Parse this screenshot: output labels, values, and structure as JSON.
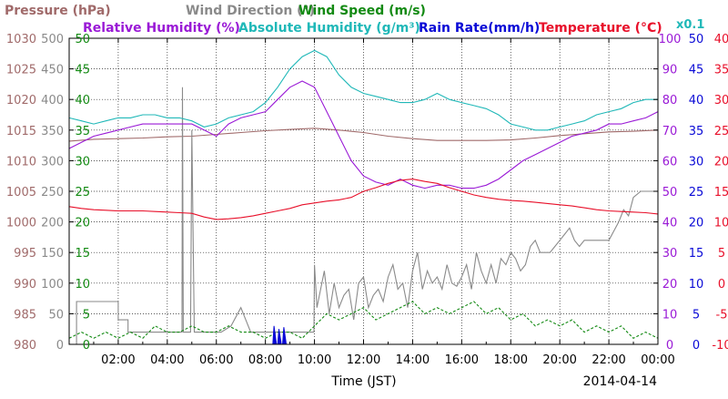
{
  "chart_data": {
    "type": "line",
    "date_label": "2014-04-14",
    "x_axis": {
      "label": "Time (JST)",
      "range_hours": [
        0,
        24
      ],
      "ticks": [
        "02:00",
        "04:00",
        "06:00",
        "08:00",
        "10:00",
        "12:00",
        "14:00",
        "16:00",
        "18:00",
        "20:00",
        "22:00",
        "00:00"
      ],
      "grid": true
    },
    "legend": {
      "row1": [
        {
          "text": "Pressure (hPa)",
          "color": "#a06a6a"
        },
        {
          "text": "Wind Direction (°)",
          "color": "#8a8a8a"
        },
        {
          "text": "Wind Speed (m/s)",
          "color": "#138a13"
        }
      ],
      "row2": [
        {
          "text": "Relative Humidity (%)",
          "color": "#9a1ad6"
        },
        {
          "text": "Absolute Humidity (g/m³)",
          "color": "#20b8b8"
        },
        {
          "text": "Rain Rate(mm/h)",
          "color": "#0a0ad6"
        },
        {
          "text": "Temperature (°C)",
          "color": "#e8102a"
        }
      ],
      "scale_note": {
        "text": "x0.1",
        "color": "#20b8b8"
      }
    },
    "y_axes": [
      {
        "name": "Pressure (hPa)",
        "side": "left",
        "color": "#a06a6a",
        "range": [
          980,
          1030
        ],
        "ticks": [
          "980",
          "985",
          "990",
          "995",
          "1000",
          "1005",
          "1010",
          "1015",
          "1020",
          "1025",
          "1030"
        ]
      },
      {
        "name": "Wind Direction (°)",
        "side": "left",
        "color": "#8a8a8a",
        "range": [
          0,
          500
        ],
        "ticks": [
          "0",
          "50",
          "100",
          "150",
          "200",
          "250",
          "300",
          "350",
          "400",
          "450",
          "500"
        ]
      },
      {
        "name": "Wind Speed (m/s)",
        "side": "left",
        "color": "#138a13",
        "range": [
          0,
          50
        ],
        "ticks": [
          "0",
          "5",
          "10",
          "15",
          "20",
          "25",
          "30",
          "35",
          "40",
          "45",
          "50"
        ]
      },
      {
        "name": "Relative Humidity (%)",
        "side": "right",
        "color": "#9a1ad6",
        "range": [
          0,
          100
        ],
        "ticks": [
          "0",
          "10",
          "20",
          "30",
          "40",
          "50",
          "60",
          "70",
          "80",
          "90",
          "100"
        ]
      },
      {
        "name": "Rain Rate(mm/h)",
        "side": "right",
        "color": "#0a0ad6",
        "range": [
          0,
          50
        ],
        "ticks": [
          "0",
          "5",
          "10",
          "15",
          "20",
          "25",
          "30",
          "35",
          "40",
          "45",
          "50"
        ]
      },
      {
        "name": "Temperature (°C)",
        "side": "right",
        "color": "#e8102a",
        "range": [
          -10,
          40
        ],
        "ticks": [
          "-10",
          "-5",
          "0",
          "5",
          "10",
          "15",
          "20",
          "25",
          "30",
          "35",
          "40"
        ]
      }
    ],
    "series": [
      {
        "name": "Pressure (hPa)",
        "color": "#a06a6a",
        "axis": 0,
        "style": "solid",
        "x": [
          0,
          1,
          2,
          3,
          4,
          5,
          6,
          7,
          8,
          9,
          10,
          11,
          12,
          13,
          14,
          15,
          16,
          17,
          18,
          19,
          20,
          21,
          22,
          23,
          24
        ],
        "y": [
          1013.2,
          1013.5,
          1013.6,
          1013.7,
          1013.9,
          1014.0,
          1014.3,
          1014.6,
          1014.9,
          1015.1,
          1015.3,
          1015.0,
          1014.6,
          1014.0,
          1013.6,
          1013.3,
          1013.3,
          1013.3,
          1013.4,
          1013.7,
          1014.1,
          1014.4,
          1014.7,
          1014.8,
          1015.0
        ]
      },
      {
        "name": "Wind Direction (°)",
        "color": "#8a8a8a",
        "axis": 1,
        "style": "solid",
        "x": [
          0,
          0.3,
          0.3,
          2,
          2,
          2.4,
          2.4,
          3.8,
          3.8,
          4.5,
          4.6,
          4.62,
          4.65,
          4.8,
          4.9,
          4.95,
          5.0,
          5.1,
          5.2,
          5.6,
          5.8,
          6.0,
          6.2,
          6.6,
          7.0,
          7.4,
          8.0,
          8.5,
          9.0,
          9.5,
          9.98,
          10.0,
          10.1,
          10.2,
          10.4,
          10.6,
          10.8,
          11.0,
          11.2,
          11.4,
          11.6,
          11.8,
          12.0,
          12.2,
          12.4,
          12.6,
          12.8,
          13.0,
          13.2,
          13.4,
          13.6,
          13.8,
          14.0,
          14.2,
          14.4,
          14.6,
          14.8,
          15.0,
          15.2,
          15.4,
          15.6,
          15.8,
          16.0,
          16.2,
          16.4,
          16.6,
          16.8,
          17.0,
          17.2,
          17.4,
          17.6,
          17.8,
          18.0,
          18.2,
          18.4,
          18.6,
          18.8,
          19.0,
          19.2,
          19.4,
          19.6,
          19.8,
          20.0,
          20.2,
          20.4,
          20.6,
          20.8,
          21.0,
          21.5,
          22.0,
          22.4,
          22.6,
          22.8,
          23.0,
          23.3,
          23.6,
          24.0
        ],
        "y": [
          0,
          0,
          70,
          70,
          40,
          40,
          20,
          20,
          20,
          20,
          20,
          420,
          20,
          20,
          20,
          20,
          350,
          20,
          20,
          20,
          20,
          20,
          20,
          30,
          60,
          20,
          20,
          20,
          20,
          20,
          20,
          130,
          60,
          80,
          120,
          50,
          100,
          60,
          80,
          90,
          40,
          100,
          110,
          60,
          80,
          90,
          70,
          110,
          130,
          90,
          100,
          60,
          120,
          150,
          90,
          120,
          100,
          110,
          90,
          130,
          100,
          95,
          110,
          130,
          90,
          150,
          120,
          100,
          130,
          100,
          140,
          130,
          150,
          140,
          120,
          130,
          160,
          170,
          150,
          150,
          150,
          160,
          170,
          180,
          190,
          170,
          160,
          170,
          170,
          170,
          200,
          220,
          210,
          240,
          250,
          250,
          250
        ]
      },
      {
        "name": "Wind Speed (m/s)",
        "color": "#138a13",
        "axis": 2,
        "style": "dashed",
        "x": [
          0,
          0.5,
          1,
          1.5,
          2,
          2.5,
          3,
          3.5,
          4,
          4.5,
          5,
          5.5,
          6,
          6.5,
          7,
          7.5,
          8,
          8.5,
          9,
          9.5,
          10,
          10.5,
          11,
          11.5,
          12,
          12.5,
          13,
          13.5,
          14,
          14.5,
          15,
          15.5,
          16,
          16.5,
          17,
          17.5,
          18,
          18.5,
          19,
          19.5,
          20,
          20.5,
          21,
          21.5,
          22,
          22.5,
          23,
          23.5,
          24
        ],
        "y": [
          1,
          2,
          1,
          2,
          1,
          2,
          1,
          3,
          2,
          2,
          3,
          2,
          2,
          3,
          2,
          2,
          1,
          2,
          2,
          1,
          3,
          5,
          4,
          5,
          6,
          4,
          5,
          6,
          7,
          5,
          6,
          5,
          6,
          7,
          5,
          6,
          4,
          5,
          3,
          4,
          3,
          4,
          2,
          3,
          2,
          3,
          1,
          2,
          1
        ]
      },
      {
        "name": "Relative Humidity (%)",
        "color": "#9a1ad6",
        "axis": 3,
        "style": "solid",
        "x": [
          0,
          0.5,
          1,
          1.5,
          2,
          2.5,
          3,
          3.5,
          4,
          4.5,
          5,
          5.5,
          6,
          6.5,
          7,
          7.5,
          8,
          8.5,
          9,
          9.5,
          10,
          10.5,
          11,
          11.5,
          12,
          12.5,
          13,
          13.5,
          14,
          14.5,
          15,
          15.5,
          16,
          16.5,
          17,
          17.5,
          18,
          18.5,
          19,
          19.5,
          20,
          20.5,
          21,
          21.5,
          22,
          22.5,
          23,
          23.5,
          24
        ],
        "y": [
          64,
          66,
          68,
          69,
          70,
          71,
          72,
          72,
          72,
          72,
          72,
          70,
          68,
          72,
          74,
          75,
          76,
          80,
          84,
          86,
          84,
          76,
          68,
          60,
          55,
          53,
          52,
          54,
          52,
          51,
          52,
          52,
          51,
          51,
          52,
          54,
          57,
          60,
          62,
          64,
          66,
          68,
          69,
          70,
          72,
          72,
          73,
          74,
          76
        ]
      },
      {
        "name": "Absolute Humidity (g/m³)",
        "color": "#20b8b8",
        "axis": 3,
        "style": "solid",
        "x": [
          0,
          0.5,
          1,
          1.5,
          2,
          2.5,
          3,
          3.5,
          4,
          4.5,
          5,
          5.5,
          6,
          6.5,
          7,
          7.5,
          8,
          8.5,
          9,
          9.5,
          10,
          10.5,
          11,
          11.5,
          12,
          12.5,
          13,
          13.5,
          14,
          14.5,
          15,
          15.5,
          16,
          16.5,
          17,
          17.5,
          18,
          18.5,
          19,
          19.5,
          20,
          20.5,
          21,
          21.5,
          22,
          22.5,
          23,
          23.5,
          24
        ],
        "y": [
          74,
          73,
          72,
          73,
          74,
          74,
          75,
          75,
          74,
          74,
          73,
          71,
          72,
          74,
          75,
          76,
          79,
          84,
          90,
          94,
          96,
          94,
          88,
          84,
          82,
          81,
          80,
          79,
          79,
          80,
          82,
          80,
          79,
          78,
          77,
          75,
          72,
          71,
          70,
          70,
          71,
          72,
          73,
          75,
          76,
          77,
          79,
          80,
          80
        ]
      },
      {
        "name": "Rain Rate(mm/h)",
        "color": "#0a0ad6",
        "axis": 4,
        "style": "fill",
        "x": [
          8.3,
          8.35,
          8.45,
          8.5,
          8.55,
          8.65,
          8.7,
          8.75,
          8.85,
          8.9
        ],
        "y": [
          0,
          3,
          0,
          0,
          2.5,
          0,
          0,
          2.8,
          0,
          0
        ]
      },
      {
        "name": "Temperature (°C)",
        "color": "#e8102a",
        "axis": 5,
        "style": "solid",
        "x": [
          0,
          0.5,
          1,
          1.5,
          2,
          2.5,
          3,
          3.5,
          4,
          4.5,
          5,
          5.5,
          6,
          6.5,
          7,
          7.5,
          8,
          8.5,
          9,
          9.5,
          10,
          10.5,
          11,
          11.5,
          12,
          12.5,
          13,
          13.5,
          14,
          14.5,
          15,
          15.5,
          16,
          16.5,
          17,
          17.5,
          18,
          18.5,
          19,
          19.5,
          20,
          20.5,
          21,
          21.5,
          22,
          22.5,
          23,
          23.5,
          24
        ],
        "y": [
          12.5,
          12.2,
          12.0,
          11.9,
          11.8,
          11.8,
          11.8,
          11.7,
          11.6,
          11.5,
          11.4,
          10.8,
          10.4,
          10.5,
          10.7,
          11.0,
          11.4,
          11.8,
          12.2,
          12.8,
          13.1,
          13.4,
          13.6,
          14.0,
          15.0,
          15.6,
          16.3,
          16.8,
          17.0,
          16.6,
          16.3,
          15.6,
          15.0,
          14.4,
          14.0,
          13.7,
          13.5,
          13.4,
          13.2,
          13.0,
          12.8,
          12.6,
          12.3,
          12.0,
          11.8,
          11.7,
          11.6,
          11.5,
          11.3
        ]
      }
    ]
  }
}
